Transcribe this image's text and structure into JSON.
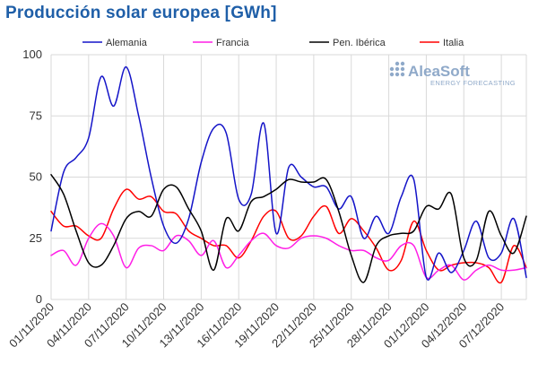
{
  "title": "Producción solar europea [GWh]",
  "logo": {
    "name": "AleaSoft",
    "tagline": "ENERGY FORECASTING",
    "icon": "aleasoft-logo-icon"
  },
  "chart_data": {
    "type": "line",
    "ylim": [
      0,
      100
    ],
    "y_ticks": [
      0,
      25,
      50,
      75,
      100
    ],
    "x": [
      "01/11/2020",
      "02/11/2020",
      "03/11/2020",
      "04/11/2020",
      "05/11/2020",
      "06/11/2020",
      "07/11/2020",
      "08/11/2020",
      "09/11/2020",
      "10/11/2020",
      "11/11/2020",
      "12/11/2020",
      "13/11/2020",
      "14/11/2020",
      "15/11/2020",
      "16/11/2020",
      "17/11/2020",
      "18/11/2020",
      "19/11/2020",
      "20/11/2020",
      "21/11/2020",
      "22/11/2020",
      "23/11/2020",
      "24/11/2020",
      "25/11/2020",
      "26/11/2020",
      "27/11/2020",
      "28/11/2020",
      "29/11/2020",
      "30/11/2020",
      "01/12/2020",
      "02/12/2020",
      "03/12/2020",
      "04/12/2020",
      "05/12/2020",
      "06/12/2020",
      "07/12/2020",
      "08/12/2020",
      "09/12/2020"
    ],
    "x_tick_labels": [
      "01/11/2020",
      "04/11/2020",
      "07/11/2020",
      "10/11/2020",
      "13/11/2020",
      "16/11/2020",
      "19/11/2020",
      "22/11/2020",
      "25/11/2020",
      "28/11/2020",
      "01/12/2020",
      "04/12/2020",
      "07/12/2020"
    ],
    "grid": true,
    "legend_position": "top",
    "series": [
      {
        "name": "Alemania",
        "color": "#1414c8",
        "values": [
          28,
          52,
          58,
          66,
          91,
          79,
          95,
          75,
          50,
          30,
          23,
          33,
          56,
          70,
          68,
          41,
          43,
          72,
          27,
          54,
          50,
          46,
          46,
          37,
          42,
          25,
          34,
          27,
          42,
          49,
          9,
          19,
          11,
          20,
          32,
          17,
          19,
          33,
          9
        ]
      },
      {
        "name": "Francia",
        "color": "#ff1ee6",
        "values": [
          18,
          20,
          14,
          25,
          31,
          26,
          13,
          21,
          22,
          20,
          26,
          24,
          18,
          24,
          13,
          18,
          24,
          27,
          22,
          21,
          25,
          26,
          25,
          22,
          20,
          20,
          17,
          16,
          22,
          22,
          9,
          12,
          14,
          8,
          12,
          14,
          12,
          12,
          13
        ]
      },
      {
        "name": "Pen. Ibérica",
        "color": "#000000",
        "values": [
          51,
          43,
          28,
          15,
          14,
          22,
          33,
          36,
          34,
          45,
          46,
          37,
          28,
          12,
          33,
          28,
          40,
          42,
          45,
          49,
          48,
          48,
          49,
          36,
          18,
          7,
          22,
          26,
          27,
          28,
          38,
          37,
          43,
          17,
          16,
          36,
          26,
          19,
          34
        ]
      },
      {
        "name": "Italia",
        "color": "#ff0000",
        "values": [
          36,
          30,
          30,
          26,
          25,
          37,
          45,
          41,
          42,
          36,
          35,
          28,
          25,
          22,
          22,
          17,
          24,
          34,
          36,
          25,
          26,
          34,
          38,
          27,
          33,
          28,
          21,
          12,
          16,
          32,
          20,
          12,
          14,
          15,
          15,
          13,
          7,
          22,
          13
        ]
      }
    ]
  }
}
